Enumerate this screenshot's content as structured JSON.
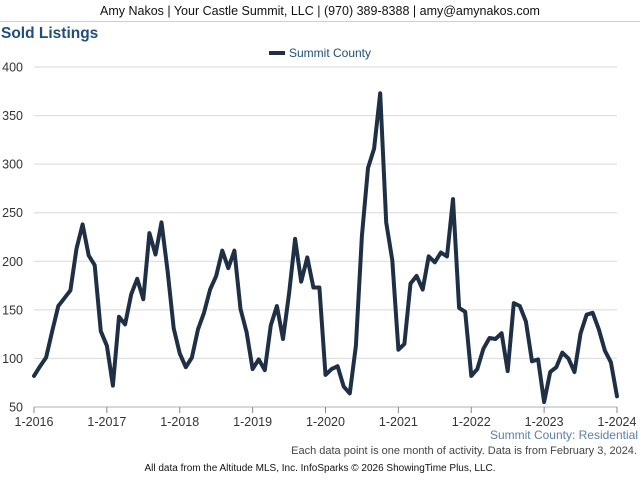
{
  "header": {
    "text": "Amy Nakos | Your Castle Summit, LLC | (970) 389-8388 | amy@amynakos.com"
  },
  "chart_data": {
    "type": "line",
    "title": "Sold Listings",
    "xlabel": "",
    "ylabel": "",
    "legend": "top-center",
    "grid": true,
    "ylim": [
      50,
      400
    ],
    "yticks": [
      50,
      100,
      150,
      200,
      250,
      300,
      350,
      400
    ],
    "xlim": [
      "2016-01",
      "2024-01"
    ],
    "xticks": [
      {
        "label": "1-2016",
        "date": "2016-01"
      },
      {
        "label": "1-2017",
        "date": "2017-01"
      },
      {
        "label": "1-2018",
        "date": "2018-01"
      },
      {
        "label": "1-2019",
        "date": "2019-01"
      },
      {
        "label": "1-2020",
        "date": "2020-01"
      },
      {
        "label": "1-2021",
        "date": "2021-01"
      },
      {
        "label": "1-2022",
        "date": "2022-01"
      },
      {
        "label": "1-2023",
        "date": "2023-01"
      },
      {
        "label": "1-2024",
        "date": "2024-01"
      }
    ],
    "series": [
      {
        "name": "Summit County",
        "color": "#1f3046",
        "x": [
          "2016-01",
          "2016-02",
          "2016-03",
          "2016-04",
          "2016-05",
          "2016-06",
          "2016-07",
          "2016-08",
          "2016-09",
          "2016-10",
          "2016-11",
          "2016-12",
          "2017-01",
          "2017-02",
          "2017-03",
          "2017-04",
          "2017-05",
          "2017-06",
          "2017-07",
          "2017-08",
          "2017-09",
          "2017-10",
          "2017-11",
          "2017-12",
          "2018-01",
          "2018-02",
          "2018-03",
          "2018-04",
          "2018-05",
          "2018-06",
          "2018-07",
          "2018-08",
          "2018-09",
          "2018-10",
          "2018-11",
          "2018-12",
          "2019-01",
          "2019-02",
          "2019-03",
          "2019-04",
          "2019-05",
          "2019-06",
          "2019-07",
          "2019-08",
          "2019-09",
          "2019-10",
          "2019-11",
          "2019-12",
          "2020-01",
          "2020-02",
          "2020-03",
          "2020-04",
          "2020-05",
          "2020-06",
          "2020-07",
          "2020-08",
          "2020-09",
          "2020-10",
          "2020-11",
          "2020-12",
          "2021-01",
          "2021-02",
          "2021-03",
          "2021-04",
          "2021-05",
          "2021-06",
          "2021-07",
          "2021-08",
          "2021-09",
          "2021-10",
          "2021-11",
          "2021-12",
          "2022-01",
          "2022-02",
          "2022-03",
          "2022-04",
          "2022-05",
          "2022-06",
          "2022-07",
          "2022-08",
          "2022-09",
          "2022-10",
          "2022-11",
          "2022-12",
          "2023-01",
          "2023-02",
          "2023-03",
          "2023-04",
          "2023-05",
          "2023-06",
          "2023-07",
          "2023-08",
          "2023-09",
          "2023-10",
          "2023-11",
          "2023-12",
          "2024-01"
        ],
        "values": [
          82,
          92,
          101,
          128,
          154,
          162,
          170,
          213,
          238,
          206,
          196,
          128,
          113,
          72,
          143,
          135,
          166,
          182,
          161,
          229,
          207,
          240,
          190,
          131,
          105,
          91,
          101,
          130,
          147,
          171,
          185,
          211,
          193,
          211,
          151,
          127,
          89,
          99,
          88,
          134,
          154,
          120,
          167,
          223,
          179,
          204,
          173,
          173,
          83,
          89,
          92,
          71,
          64,
          113,
          226,
          296,
          316,
          373,
          240,
          201,
          109,
          115,
          177,
          185,
          171,
          205,
          199,
          209,
          205,
          264,
          152,
          148,
          82,
          89,
          110,
          121,
          120,
          126,
          87,
          157,
          154,
          138,
          97,
          99,
          55,
          86,
          91,
          106,
          100,
          86,
          126,
          145,
          147,
          130,
          108,
          96,
          61
        ]
      }
    ]
  },
  "series_caption": "Summit County: Residential",
  "footnote": "Each data point is one month of activity. Data is from February 3, 2024.",
  "footer": "All data from the Altitude MLS, Inc. InfoSparks © 2026 ShowingTime Plus, LLC."
}
